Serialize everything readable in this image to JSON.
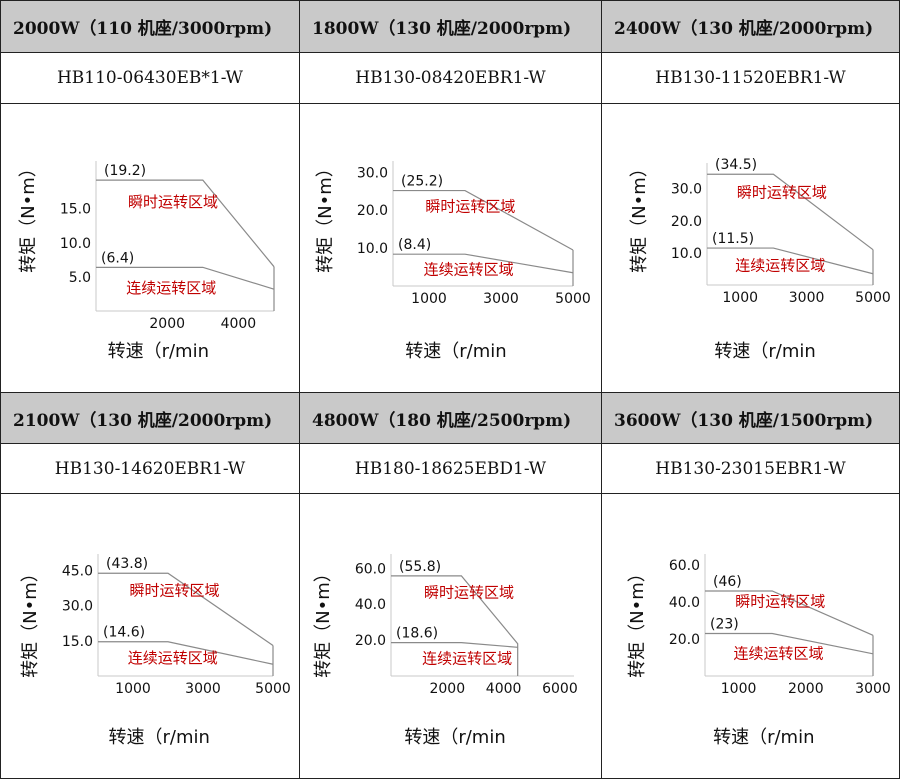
{
  "chart_data": [
    {
      "type": "line",
      "title": "2000W（110 机座/3000rpm)",
      "model": "HB110-06430EB*1-W",
      "xlabel": "转速（r/min",
      "ylabel": "转矩（N•m）",
      "xticks": [
        2000,
        4000
      ],
      "yticks": [
        5.0,
        10.0,
        15.0
      ],
      "xlim": [
        0,
        5000
      ],
      "ylim": [
        0,
        22
      ],
      "peak_label": "(19.2)",
      "cont_label": "(6.4)",
      "zone_peak": "瞬时运转区域",
      "zone_cont": "连续运转区域",
      "series": [
        {
          "name": "瞬时运转区域",
          "x": [
            0,
            3000,
            5000
          ],
          "y": [
            19.2,
            19.2,
            6.5
          ]
        },
        {
          "name": "连续运转区域",
          "x": [
            0,
            3000,
            5000
          ],
          "y": [
            6.4,
            6.4,
            3.2
          ]
        }
      ]
    },
    {
      "type": "line",
      "title": "1800W（130 机座/2000rpm)",
      "model": "HB130-08420EBR1-W",
      "xlabel": "转速（r/min",
      "ylabel": "转矩（N•m）",
      "xticks": [
        1000,
        3000,
        5000
      ],
      "yticks": [
        10.0,
        20.0,
        30.0
      ],
      "xlim": [
        0,
        5000
      ],
      "ylim": [
        0,
        33
      ],
      "peak_label": "(25.2)",
      "cont_label": "(8.4)",
      "zone_peak": "瞬时运转区域",
      "zone_cont": "连续运转区域",
      "series": [
        {
          "name": "瞬时运转区域",
          "x": [
            0,
            2000,
            5000
          ],
          "y": [
            25.2,
            25.2,
            9.5
          ]
        },
        {
          "name": "连续运转区域",
          "x": [
            0,
            2000,
            5000
          ],
          "y": [
            8.4,
            8.4,
            3.5
          ]
        }
      ]
    },
    {
      "type": "line",
      "title": "2400W（130 机座/2000rpm)",
      "model": "HB130-11520EBR1-W",
      "xlabel": "转速（r/min",
      "ylabel": "转矩（N•m）",
      "xticks": [
        1000,
        3000,
        5000
      ],
      "yticks": [
        10.0,
        20.0,
        30.0
      ],
      "xlim": [
        0,
        5000
      ],
      "ylim": [
        0,
        38
      ],
      "peak_label": "(34.5)",
      "cont_label": "(11.5)",
      "zone_peak": "瞬时运转区域",
      "zone_cont": "连续运转区域",
      "series": [
        {
          "name": "瞬时运转区域",
          "x": [
            0,
            2000,
            5000
          ],
          "y": [
            34.5,
            34.5,
            11.0
          ]
        },
        {
          "name": "连续运转区域",
          "x": [
            0,
            2000,
            5000
          ],
          "y": [
            11.5,
            11.5,
            3.5
          ]
        }
      ]
    },
    {
      "type": "line",
      "title": "2100W（130 机座/2000rpm)",
      "model": "HB130-14620EBR1-W",
      "xlabel": "转速（r/min",
      "ylabel": "转矩（N•m）",
      "xticks": [
        1000,
        3000,
        5000
      ],
      "yticks": [
        15.0,
        30.0,
        45.0
      ],
      "xlim": [
        0,
        5000
      ],
      "ylim": [
        0,
        52
      ],
      "peak_label": "(43.8)",
      "cont_label": "(14.6)",
      "zone_peak": "瞬时运转区域",
      "zone_cont": "连续运转区域",
      "series": [
        {
          "name": "瞬时运转区域",
          "x": [
            0,
            2000,
            5000
          ],
          "y": [
            43.8,
            43.8,
            13.0
          ]
        },
        {
          "name": "连续运转区域",
          "x": [
            0,
            2000,
            5000
          ],
          "y": [
            14.6,
            14.6,
            5.0
          ]
        }
      ]
    },
    {
      "type": "line",
      "title": "4800W（180 机座/2500rpm)",
      "model": "HB180-18625EBD1-W",
      "xlabel": "转速（r/min",
      "ylabel": "转矩（N•m）",
      "xticks": [
        2000,
        4000,
        6000
      ],
      "yticks": [
        20.0,
        40.0,
        60.0
      ],
      "xlim": [
        0,
        6500
      ],
      "ylim": [
        0,
        68
      ],
      "peak_label": "(55.8)",
      "cont_label": "(18.6)",
      "zone_peak": "瞬时运转区域",
      "zone_cont": "连续运转区域",
      "series": [
        {
          "name": "瞬时运转区域",
          "x": [
            0,
            2500,
            4500,
            4500
          ],
          "y": [
            55.8,
            55.8,
            18.0,
            0
          ]
        },
        {
          "name": "连续运转区域",
          "x": [
            0,
            2500,
            4500
          ],
          "y": [
            18.6,
            18.6,
            16.0
          ]
        }
      ]
    },
    {
      "type": "line",
      "title": "3600W（130 机座/1500rpm)",
      "model": "HB130-23015EBR1-W",
      "xlabel": "转速（r/min",
      "ylabel": "转矩（N•m）",
      "xticks": [
        1000,
        2000,
        3000
      ],
      "yticks": [
        20.0,
        40.0,
        60.0
      ],
      "xlim": [
        500,
        3000
      ],
      "ylim": [
        0,
        66
      ],
      "peak_label": "(46)",
      "cont_label": "(23)",
      "zone_peak": "瞬时运转区域",
      "zone_cont": "连续运转区域",
      "series": [
        {
          "name": "瞬时运转区域",
          "x": [
            500,
            1500,
            3000
          ],
          "y": [
            46,
            46,
            22
          ]
        },
        {
          "name": "连续运转区域",
          "x": [
            500,
            1500,
            3000
          ],
          "y": [
            23,
            23,
            12
          ]
        }
      ]
    }
  ]
}
